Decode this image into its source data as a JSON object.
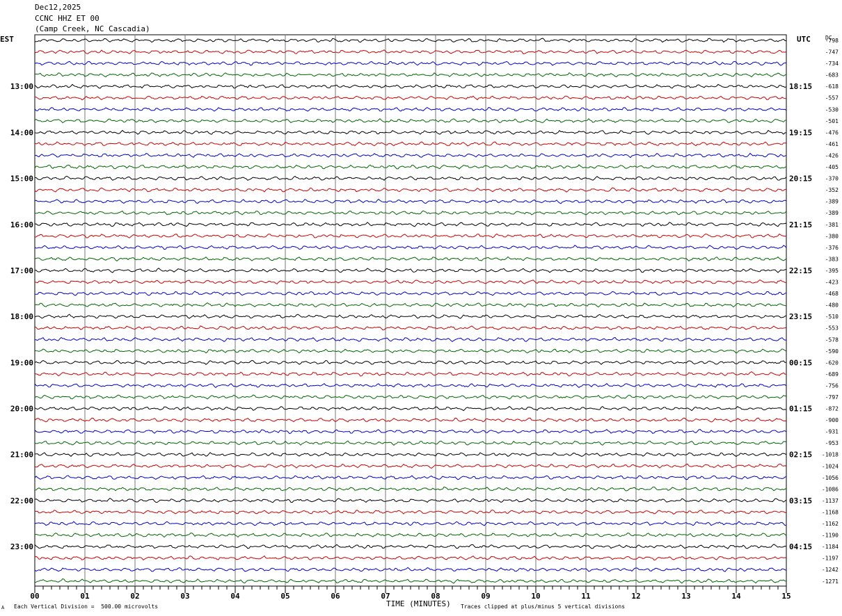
{
  "header": {
    "date": "Dec12,2025",
    "station": "CCNC HHZ ET 00",
    "location": "(Camp Creek, NC Cascadia)"
  },
  "chart_data": {
    "type": "line",
    "title": "",
    "left_axis_label": "EST",
    "right_axis_label": "UTC",
    "dc_label": "DC",
    "xlabel": "TIME (MINUTES)",
    "xlim": [
      0,
      15
    ],
    "x_ticks": [
      "00",
      "01",
      "02",
      "03",
      "04",
      "05",
      "06",
      "07",
      "08",
      "09",
      "10",
      "11",
      "12",
      "13",
      "14",
      "15"
    ],
    "left_hour_labels": [
      "13:00",
      "14:00",
      "15:00",
      "16:00",
      "17:00",
      "18:00",
      "19:00",
      "20:00",
      "21:00",
      "22:00",
      "23:00"
    ],
    "right_hour_labels": [
      "18:15",
      "19:15",
      "20:15",
      "21:15",
      "22:15",
      "23:15",
      "00:15",
      "01:15",
      "02:15",
      "03:15",
      "04:15"
    ],
    "trace_colors": [
      "#000000",
      "#cc0000",
      "#0000cc",
      "#006600"
    ],
    "dc_offsets": [
      "-798",
      "-747",
      "-734",
      "-683",
      "-618",
      "-557",
      "-530",
      "-501",
      "-476",
      "-461",
      "-426",
      "-405",
      "-370",
      "-352",
      "-389",
      "-389",
      "-381",
      "-380",
      "-376",
      "-383",
      "-395",
      "-423",
      "-468",
      "-480",
      "-510",
      "-553",
      "-578",
      "-590",
      "-620",
      "-689",
      "-756",
      "-797",
      "-872",
      "-900",
      "-931",
      "-953",
      "-1018",
      "-1024",
      "-1056",
      "-1086",
      "-1137",
      "-1168",
      "-1162",
      "-1190",
      "-1184",
      "-1197",
      "-1242",
      "-1271"
    ],
    "grid": true
  },
  "footer": {
    "scale_note": "Each Vertical Division =  500.00 microvolts",
    "clip_note": "Traces clipped at plus/minus 5 vertical divisions",
    "corner_mark": "A"
  }
}
